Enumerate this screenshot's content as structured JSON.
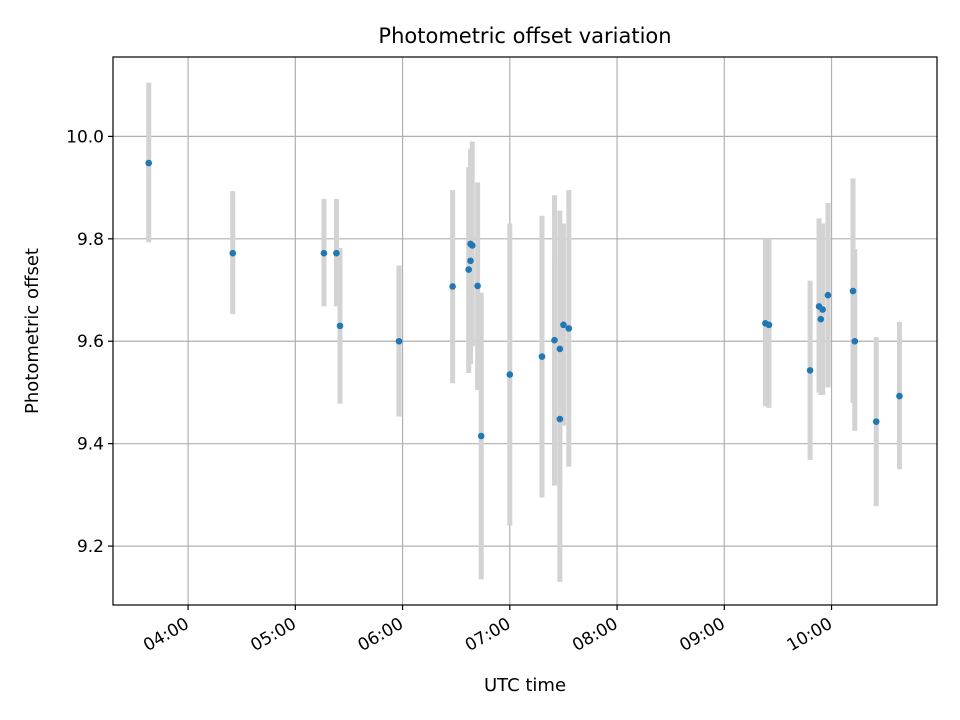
{
  "chart_data": {
    "type": "scatter",
    "title": "Photometric offset variation",
    "xlabel": "UTC time",
    "ylabel": "Photometric offset",
    "xlim": [
      "03:18",
      "10:59"
    ],
    "ylim": [
      9.085,
      10.155
    ],
    "x_ticks": [
      "04:00",
      "05:00",
      "06:00",
      "07:00",
      "08:00",
      "09:00",
      "10:00"
    ],
    "y_ticks": [
      9.2,
      9.4,
      9.6,
      9.8,
      10.0
    ],
    "y_tick_labels": [
      "9.2",
      "9.4",
      "9.6",
      "9.8",
      "10.0"
    ],
    "grid": true,
    "colors": {
      "point": "#1f77b4",
      "error_bar": "#d3d3d3",
      "grid": "#b0b0b0"
    },
    "points": [
      {
        "x": "03:38",
        "y": 9.948,
        "lo": 9.793,
        "hi": 10.105
      },
      {
        "x": "04:25",
        "y": 9.772,
        "lo": 9.653,
        "hi": 9.893
      },
      {
        "x": "05:16",
        "y": 9.772,
        "lo": 9.668,
        "hi": 9.878
      },
      {
        "x": "05:23",
        "y": 9.772,
        "lo": 9.668,
        "hi": 9.878
      },
      {
        "x": "05:25",
        "y": 9.63,
        "lo": 9.478,
        "hi": 9.782
      },
      {
        "x": "05:58",
        "y": 9.6,
        "lo": 9.453,
        "hi": 9.748
      },
      {
        "x": "06:28",
        "y": 9.707,
        "lo": 9.518,
        "hi": 9.895
      },
      {
        "x": "06:37",
        "y": 9.74,
        "lo": 9.538,
        "hi": 9.94
      },
      {
        "x": "06:38",
        "y": 9.757,
        "lo": 9.555,
        "hi": 9.96
      },
      {
        "x": "06:38",
        "y": 9.79,
        "lo": 9.585,
        "hi": 9.975
      },
      {
        "x": "06:39",
        "y": 9.787,
        "lo": 9.59,
        "hi": 9.99
      },
      {
        "x": "06:42",
        "y": 9.708,
        "lo": 9.505,
        "hi": 9.91
      },
      {
        "x": "06:44",
        "y": 9.415,
        "lo": 9.135,
        "hi": 9.695
      },
      {
        "x": "07:00",
        "y": 9.535,
        "lo": 9.24,
        "hi": 9.83
      },
      {
        "x": "07:18",
        "y": 9.57,
        "lo": 9.295,
        "hi": 9.845
      },
      {
        "x": "07:25",
        "y": 9.602,
        "lo": 9.318,
        "hi": 9.885
      },
      {
        "x": "07:28",
        "y": 9.448,
        "lo": 9.13,
        "hi": 9.765
      },
      {
        "x": "07:28",
        "y": 9.585,
        "lo": 9.315,
        "hi": 9.855
      },
      {
        "x": "07:30",
        "y": 9.632,
        "lo": 9.435,
        "hi": 9.83
      },
      {
        "x": "07:33",
        "y": 9.625,
        "lo": 9.355,
        "hi": 9.895
      },
      {
        "x": "09:23",
        "y": 9.635,
        "lo": 9.473,
        "hi": 9.8
      },
      {
        "x": "09:25",
        "y": 9.632,
        "lo": 9.47,
        "hi": 9.8
      },
      {
        "x": "09:48",
        "y": 9.543,
        "lo": 9.368,
        "hi": 9.718
      },
      {
        "x": "09:53",
        "y": 9.668,
        "lo": 9.5,
        "hi": 9.84
      },
      {
        "x": "09:54",
        "y": 9.643,
        "lo": 9.495,
        "hi": 9.8
      },
      {
        "x": "09:55",
        "y": 9.662,
        "lo": 9.495,
        "hi": 9.83
      },
      {
        "x": "09:58",
        "y": 9.69,
        "lo": 9.51,
        "hi": 9.87
      },
      {
        "x": "10:12",
        "y": 9.698,
        "lo": 9.48,
        "hi": 9.918
      },
      {
        "x": "10:13",
        "y": 9.6,
        "lo": 9.425,
        "hi": 9.78
      },
      {
        "x": "10:25",
        "y": 9.443,
        "lo": 9.278,
        "hi": 9.608
      },
      {
        "x": "10:38",
        "y": 9.493,
        "lo": 9.35,
        "hi": 9.638
      }
    ]
  }
}
